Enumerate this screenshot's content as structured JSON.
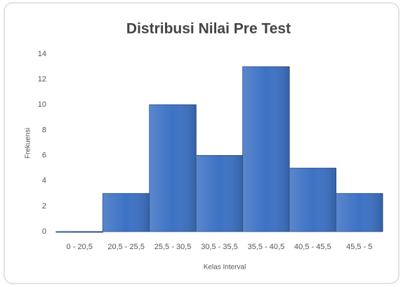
{
  "chart_data": {
    "type": "bar",
    "title": "Distribusi Nilai Pre Test",
    "x_label": "Kelas Interval",
    "y_label": "Frekuensi",
    "categories": [
      "0 - 20,5",
      "20,5 - 25,5",
      "25,5 - 30,5",
      "30,5 - 35,5",
      "35,5 - 40,5",
      "40,5 - 45,5",
      "45,5 - 5"
    ],
    "values": [
      0,
      3,
      10,
      6,
      13,
      5,
      3
    ],
    "color": "#3d72c4",
    "ylim": [
      0,
      14
    ],
    "yticks": [
      0,
      2,
      4,
      6,
      8,
      10,
      12,
      14
    ],
    "grid": false
  }
}
